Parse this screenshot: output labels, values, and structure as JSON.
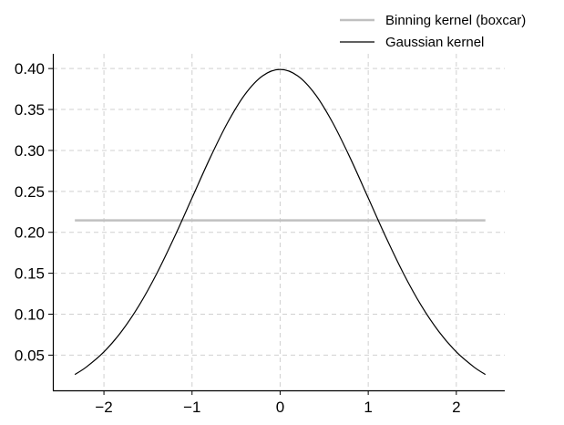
{
  "chart_data": {
    "type": "line",
    "title": "",
    "xlabel": "",
    "ylabel": "",
    "xlim": [
      -2.58,
      2.55
    ],
    "ylim": [
      0.007,
      0.418
    ],
    "x_ticks": [
      -2,
      -1,
      0,
      1,
      2
    ],
    "x_tick_labels": [
      "−2",
      "−1",
      "0",
      "1",
      "2"
    ],
    "y_ticks": [
      0.05,
      0.1,
      0.15,
      0.2,
      0.25,
      0.3,
      0.35,
      0.4
    ],
    "y_tick_labels": [
      "0.05",
      "0.10",
      "0.15",
      "0.20",
      "0.25",
      "0.30",
      "0.35",
      "0.40"
    ],
    "grid": true,
    "grid_style": "dashed",
    "legend_position": "top-right, above plot",
    "series": [
      {
        "name": "Binning kernel (boxcar)",
        "color": "#c0c0c0",
        "x": [
          -2.33,
          2.33
        ],
        "y": [
          0.2146,
          0.2146
        ]
      },
      {
        "name": "Gaussian kernel",
        "color": "#000000",
        "x": [
          -2.33,
          -2.2,
          -2.0,
          -1.8,
          -1.6,
          -1.4,
          -1.2,
          -1.0,
          -0.8,
          -0.6,
          -0.4,
          -0.2,
          0.0,
          0.2,
          0.4,
          0.6,
          0.8,
          1.0,
          1.2,
          1.4,
          1.6,
          1.8,
          2.0,
          2.2,
          2.33
        ],
        "y": [
          0.0264,
          0.0355,
          0.054,
          0.079,
          0.1109,
          0.1497,
          0.1942,
          0.242,
          0.2897,
          0.3332,
          0.3683,
          0.391,
          0.3989,
          0.391,
          0.3683,
          0.3332,
          0.2897,
          0.242,
          0.1942,
          0.1497,
          0.1109,
          0.079,
          0.054,
          0.0355,
          0.0264
        ]
      }
    ]
  }
}
